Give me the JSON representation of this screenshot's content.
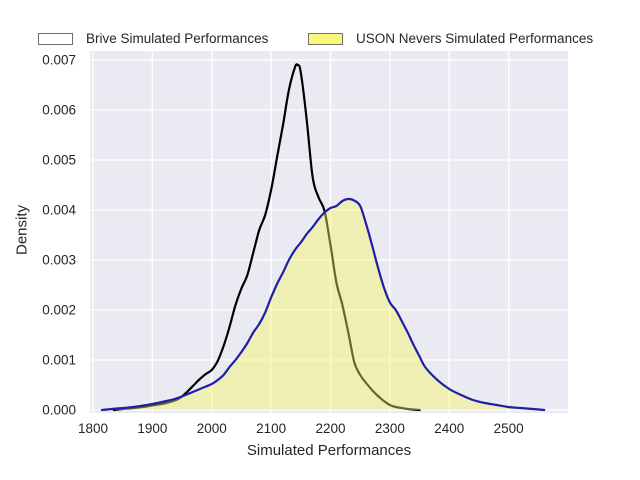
{
  "figure": {
    "background": "#ffffff",
    "plot_background": "#eaeaf2",
    "grid_color": "#ffffff",
    "text_color": "#262626"
  },
  "legend": {
    "entries": [
      {
        "label": "Brive Simulated Performances",
        "swatch_fill": "#ffffff",
        "swatch_border": "#6e6e6e"
      },
      {
        "label": "USON Nevers Simulated Performances",
        "swatch_fill": "#f8f87c",
        "swatch_border": "#6e6e6e"
      }
    ]
  },
  "chart_data": {
    "type": "area",
    "title": "",
    "xlabel": "Simulated Performances",
    "ylabel": "Density",
    "xlim": [
      1795,
      2600
    ],
    "ylim": [
      -6e-05,
      0.00718
    ],
    "grid": true,
    "legend_position": "top-outside",
    "xticks": [
      {
        "v": 1800,
        "label": "1800"
      },
      {
        "v": 1900,
        "label": "1900"
      },
      {
        "v": 2000,
        "label": "2000"
      },
      {
        "v": 2100,
        "label": "2100"
      },
      {
        "v": 2200,
        "label": "2200"
      },
      {
        "v": 2300,
        "label": "2300"
      },
      {
        "v": 2400,
        "label": "2400"
      },
      {
        "v": 2500,
        "label": "2500"
      }
    ],
    "yticks": [
      {
        "v": 0,
        "label": "0.000"
      },
      {
        "v": 0.001,
        "label": "0.001"
      },
      {
        "v": 0.002,
        "label": "0.002"
      },
      {
        "v": 0.003,
        "label": "0.003"
      },
      {
        "v": 0.004,
        "label": "0.004"
      },
      {
        "v": 0.005,
        "label": "0.005"
      },
      {
        "v": 0.006,
        "label": "0.006"
      },
      {
        "v": 0.007,
        "label": "0.007"
      }
    ],
    "series": [
      {
        "name": "Brive Simulated Performances",
        "color": "#000000",
        "fill": "none",
        "line_width": 2.2,
        "x": [
          1835,
          1850,
          1870,
          1890,
          1900,
          1910,
          1920,
          1930,
          1940,
          1950,
          1960,
          1970,
          1980,
          1990,
          2000,
          2010,
          2020,
          2030,
          2040,
          2050,
          2060,
          2070,
          2080,
          2090,
          2100,
          2110,
          2120,
          2130,
          2140,
          2145,
          2150,
          2160,
          2170,
          2180,
          2190,
          2200,
          2210,
          2220,
          2230,
          2240,
          2250,
          2260,
          2270,
          2280,
          2290,
          2300,
          2310,
          2320,
          2330,
          2340,
          2350
        ],
        "y": [
          0,
          2e-05,
          4e-05,
          7e-05,
          9e-05,
          0.00011,
          0.00013,
          0.00016,
          0.0002,
          0.00027,
          0.00038,
          0.0005,
          0.00062,
          0.00072,
          0.0008,
          0.00098,
          0.00128,
          0.00166,
          0.0021,
          0.00243,
          0.0027,
          0.00315,
          0.0036,
          0.0039,
          0.0044,
          0.00505,
          0.0057,
          0.0064,
          0.00685,
          0.0069,
          0.00675,
          0.0058,
          0.00465,
          0.00425,
          0.00398,
          0.0033,
          0.00255,
          0.0021,
          0.00155,
          0.00096,
          0.0007,
          0.00054,
          0.0004,
          0.00028,
          0.00018,
          0.0001,
          6e-05,
          4e-05,
          2e-05,
          1e-05,
          0
        ]
      },
      {
        "name": "USON Nevers Simulated Performances",
        "color": "#1e1ea8",
        "fill": "#f6f65e",
        "fill_opacity": 0.42,
        "line_width": 2.2,
        "x": [
          1815,
          1840,
          1860,
          1880,
          1900,
          1920,
          1940,
          1960,
          1980,
          2000,
          2010,
          2020,
          2030,
          2040,
          2050,
          2060,
          2070,
          2080,
          2090,
          2100,
          2110,
          2120,
          2130,
          2140,
          2150,
          2160,
          2170,
          2180,
          2190,
          2200,
          2210,
          2220,
          2230,
          2240,
          2250,
          2260,
          2270,
          2280,
          2290,
          2300,
          2310,
          2320,
          2330,
          2340,
          2350,
          2360,
          2380,
          2400,
          2420,
          2440,
          2460,
          2480,
          2500,
          2520,
          2540,
          2560
        ],
        "y": [
          0,
          3e-05,
          5e-05,
          8e-05,
          0.00012,
          0.00017,
          0.00023,
          0.00032,
          0.00042,
          0.00052,
          0.0006,
          0.0007,
          0.00086,
          0.001,
          0.00116,
          0.00134,
          0.00155,
          0.00172,
          0.00195,
          0.00225,
          0.00252,
          0.00275,
          0.003,
          0.0032,
          0.00335,
          0.00352,
          0.00366,
          0.00382,
          0.00395,
          0.00404,
          0.00408,
          0.00418,
          0.00422,
          0.00419,
          0.00408,
          0.00372,
          0.0033,
          0.00285,
          0.00245,
          0.00215,
          0.002,
          0.00178,
          0.00155,
          0.0013,
          0.00107,
          0.00085,
          0.0006,
          0.00042,
          0.0003,
          0.0002,
          0.00014,
          0.0001,
          6e-05,
          4e-05,
          2e-05,
          0
        ]
      }
    ]
  }
}
